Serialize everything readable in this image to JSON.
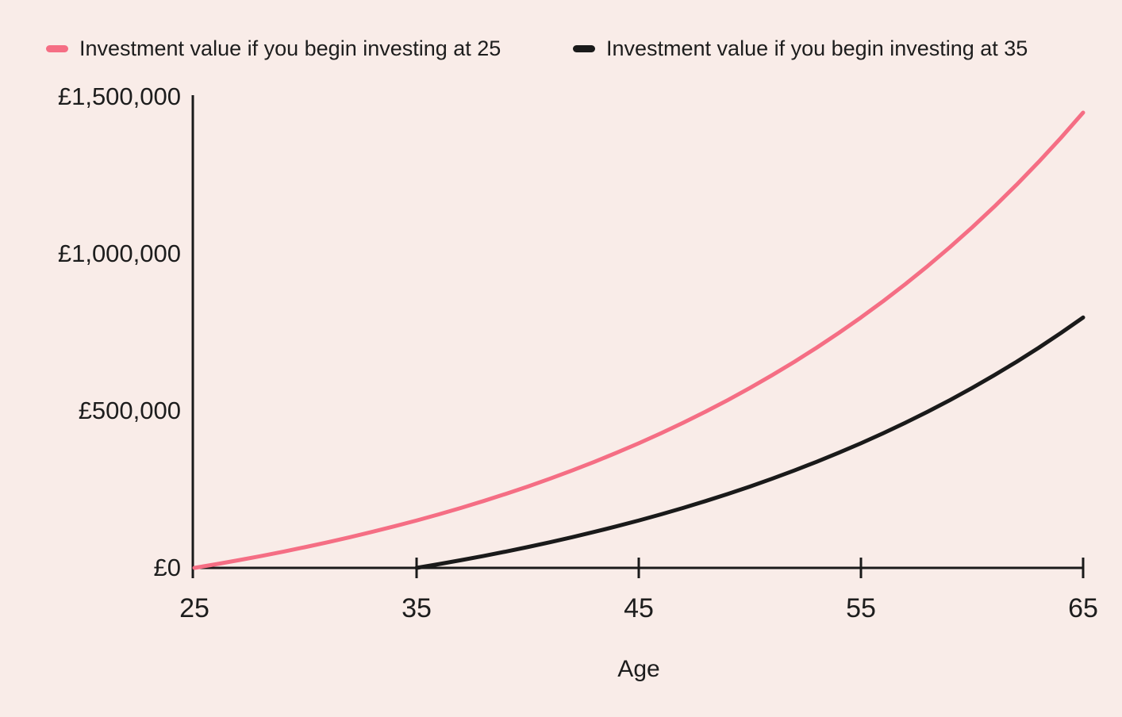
{
  "page": {
    "background_color": "#f9ece8",
    "text_color": "#1d1d1d"
  },
  "chart_data": {
    "type": "line",
    "title": "",
    "xlabel": "Age",
    "ylabel": "",
    "xlim": [
      25,
      65
    ],
    "ylim": [
      0,
      1500000
    ],
    "grid": false,
    "legend_position": "top",
    "axis_color": "#1a1a1a",
    "x_ticks": [
      {
        "value": 25,
        "label": "25"
      },
      {
        "value": 35,
        "label": "35"
      },
      {
        "value": 45,
        "label": "45"
      },
      {
        "value": 55,
        "label": "55"
      },
      {
        "value": 65,
        "label": "65"
      }
    ],
    "y_ticks": [
      {
        "value": 0,
        "label": "£0"
      },
      {
        "value": 500000,
        "label": "£500,000"
      },
      {
        "value": 1000000,
        "label": "£1,000,000"
      },
      {
        "value": 1500000,
        "label": "£1,500,000"
      }
    ],
    "series": [
      {
        "name": "Investment value if you begin investing at 25",
        "color": "#f56e84",
        "x": [
          25,
          26,
          27,
          28,
          29,
          30,
          31,
          32,
          33,
          34,
          35,
          36,
          37,
          38,
          39,
          40,
          41,
          42,
          43,
          44,
          45,
          46,
          47,
          48,
          49,
          50,
          51,
          52,
          53,
          54,
          55,
          56,
          57,
          58,
          59,
          60,
          61,
          62,
          63,
          64,
          65
        ],
        "values": [
          0,
          12000,
          24600,
          37800,
          51700,
          66300,
          81600,
          97700,
          114600,
          132300,
          150900,
          170500,
          191000,
          212600,
          235200,
          258900,
          283900,
          310100,
          337600,
          366500,
          396800,
          428600,
          462100,
          497200,
          534000,
          572700,
          613400,
          656000,
          700800,
          747900,
          797300,
          849100,
          903600,
          960800,
          1020800,
          1083800,
          1150000,
          1219500,
          1292500,
          1369100,
          1449600
        ]
      },
      {
        "name": "Investment value if you begin investing at 35",
        "color": "#1a1a1a",
        "x": [
          35,
          36,
          37,
          38,
          39,
          40,
          41,
          42,
          43,
          44,
          45,
          46,
          47,
          48,
          49,
          50,
          51,
          52,
          53,
          54,
          55,
          56,
          57,
          58,
          59,
          60,
          61,
          62,
          63,
          64,
          65
        ],
        "values": [
          0,
          12000,
          24600,
          37800,
          51700,
          66300,
          81600,
          97700,
          114600,
          132300,
          150900,
          170500,
          191000,
          212600,
          235200,
          258900,
          283900,
          310100,
          337600,
          366500,
          396800,
          428600,
          462100,
          497200,
          534000,
          572700,
          613400,
          656000,
          700800,
          747900,
          797300
        ]
      }
    ]
  }
}
